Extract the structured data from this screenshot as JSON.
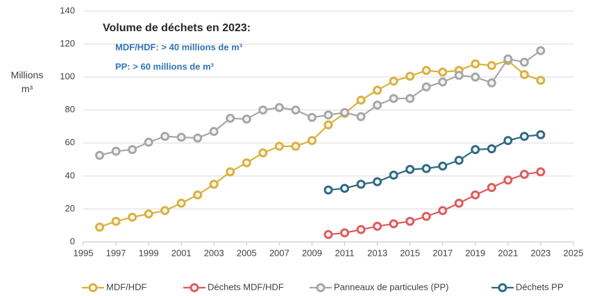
{
  "chart_data": {
    "type": "line",
    "ylabel": "Millions m³",
    "annotations": [
      "Volume de déchets en 2023:",
      "MDF/HDF: > 40 millions de m³",
      "PP: > 60 millions de m³"
    ],
    "x": [
      1996,
      1997,
      1998,
      1999,
      2000,
      2001,
      2002,
      2003,
      2004,
      2005,
      2006,
      2007,
      2008,
      2009,
      2010,
      2011,
      2012,
      2013,
      2014,
      2015,
      2016,
      2017,
      2018,
      2019,
      2020,
      2021,
      2022,
      2023
    ],
    "series": [
      {
        "name": "MDF/HDF",
        "color": "#d9b13b",
        "values": [
          9,
          12.5,
          15,
          17,
          19,
          23.5,
          28.5,
          35,
          42.5,
          48,
          54,
          58,
          58,
          61.5,
          71,
          78,
          86,
          92,
          97.5,
          100.5,
          104,
          103,
          104,
          108,
          107,
          110,
          101.5,
          98
        ]
      },
      {
        "name": "Déchets MDF/HDF",
        "color": "#df5a5a",
        "values": [
          null,
          null,
          null,
          null,
          null,
          null,
          null,
          null,
          null,
          null,
          null,
          null,
          null,
          null,
          4.5,
          5.5,
          7.5,
          9.5,
          11,
          12.5,
          15.5,
          19,
          23.5,
          28.5,
          33,
          37.5,
          41,
          42.5
        ]
      },
      {
        "name": "Panneaux de particules (PP)",
        "color": "#a6a6a6",
        "values": [
          52.5,
          55,
          56,
          60.5,
          64,
          63.5,
          63,
          67,
          75,
          74.5,
          80,
          81.5,
          80,
          75.5,
          77,
          78.5,
          76,
          83,
          87,
          87,
          94,
          97,
          101,
          100,
          96.5,
          111,
          109,
          116
        ]
      },
      {
        "name": "Déchets PP",
        "color": "#2d6a7f",
        "values": [
          null,
          null,
          null,
          null,
          null,
          null,
          null,
          null,
          null,
          null,
          null,
          null,
          null,
          null,
          31.5,
          32.5,
          35,
          36.5,
          40.5,
          44,
          44.5,
          46,
          49.5,
          56,
          56.5,
          61.5,
          64,
          65
        ]
      }
    ],
    "xlim": [
      1995,
      2025
    ],
    "xticks": [
      1995,
      1997,
      1999,
      2001,
      2003,
      2005,
      2007,
      2009,
      2011,
      2013,
      2015,
      2017,
      2019,
      2021,
      2023,
      2025
    ],
    "ylim": [
      0,
      140
    ],
    "yticks": [
      0,
      20,
      40,
      60,
      80,
      100,
      120,
      140
    ],
    "grid": true,
    "legend": "bottom"
  }
}
